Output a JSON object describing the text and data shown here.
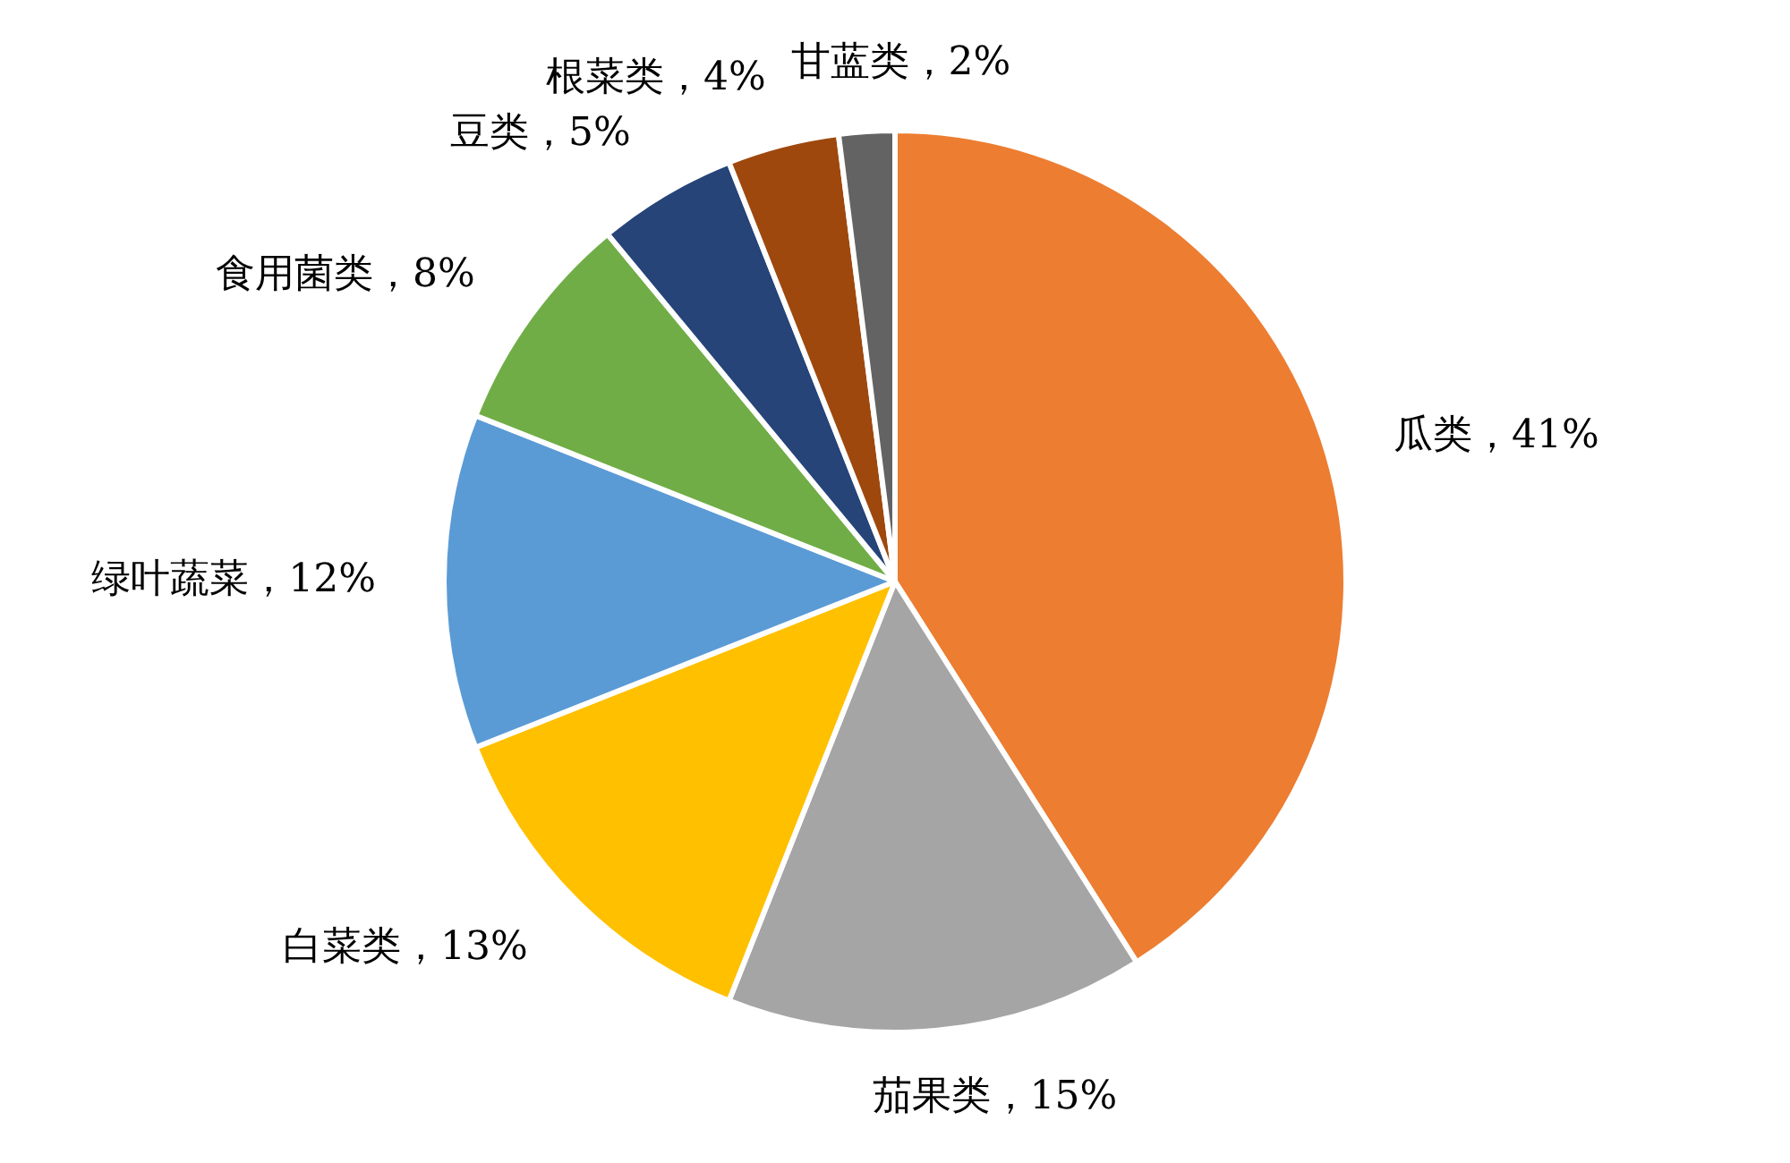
{
  "chart_data": {
    "type": "pie",
    "categories": [
      "瓜类",
      "茄果类",
      "白菜类",
      "绿叶蔬菜",
      "食用菌类",
      "豆类",
      "根菜类",
      "甘蓝类"
    ],
    "values": [
      41,
      15,
      13,
      12,
      8,
      5,
      4,
      2
    ],
    "value_labels": [
      "，41%",
      "，15%",
      "，13%",
      "，12%",
      "，8%",
      "，5%",
      "，4%",
      "，2%"
    ],
    "colors": [
      "#ed7d31",
      "#a5a5a5",
      "#ffc000",
      "#5b9bd5",
      "#70ad47",
      "#264478",
      "#9e480e",
      "#636363"
    ]
  }
}
